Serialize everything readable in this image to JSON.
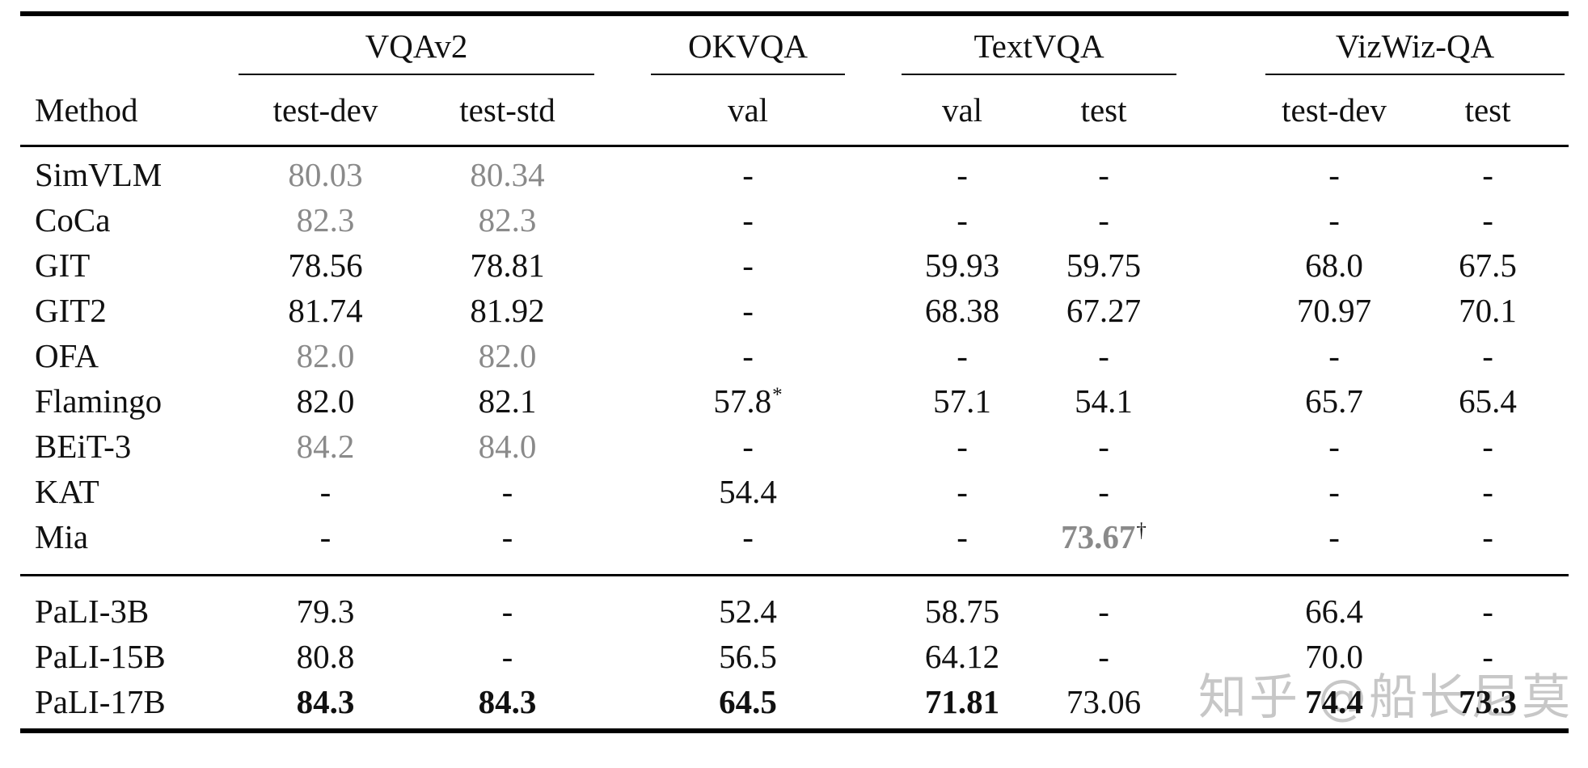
{
  "table": {
    "method_header": "Method",
    "col_groups": [
      {
        "label": "VQAv2",
        "subcols": [
          "test-dev",
          "test-std"
        ]
      },
      {
        "label": "OKVQA",
        "subcols": [
          "val"
        ]
      },
      {
        "label": "TextVQA",
        "subcols": [
          "val",
          "test"
        ]
      },
      {
        "label": "VizWiz-QA",
        "subcols": [
          "test-dev",
          "test"
        ]
      }
    ],
    "rows": [
      {
        "method": "SimVLM",
        "group": "baselines",
        "cells": [
          {
            "t": "80.03",
            "gray": true
          },
          {
            "t": "80.34",
            "gray": true
          },
          {
            "t": "-"
          },
          {
            "t": "-"
          },
          {
            "t": "-"
          },
          {
            "t": "-"
          },
          {
            "t": "-"
          }
        ]
      },
      {
        "method": "CoCa",
        "group": "baselines",
        "cells": [
          {
            "t": "82.3",
            "gray": true
          },
          {
            "t": "82.3",
            "gray": true
          },
          {
            "t": "-"
          },
          {
            "t": "-"
          },
          {
            "t": "-"
          },
          {
            "t": "-"
          },
          {
            "t": "-"
          }
        ]
      },
      {
        "method": "GIT",
        "group": "baselines",
        "cells": [
          {
            "t": "78.56"
          },
          {
            "t": "78.81"
          },
          {
            "t": "-"
          },
          {
            "t": "59.93"
          },
          {
            "t": "59.75"
          },
          {
            "t": "68.0"
          },
          {
            "t": "67.5"
          }
        ]
      },
      {
        "method": "GIT2",
        "group": "baselines",
        "cells": [
          {
            "t": "81.74"
          },
          {
            "t": "81.92"
          },
          {
            "t": "-"
          },
          {
            "t": "68.38"
          },
          {
            "t": "67.27"
          },
          {
            "t": "70.97"
          },
          {
            "t": "70.1"
          }
        ]
      },
      {
        "method": "OFA",
        "group": "baselines",
        "cells": [
          {
            "t": "82.0",
            "gray": true
          },
          {
            "t": "82.0",
            "gray": true
          },
          {
            "t": "-"
          },
          {
            "t": "-"
          },
          {
            "t": "-"
          },
          {
            "t": "-"
          },
          {
            "t": "-"
          }
        ]
      },
      {
        "method": "Flamingo",
        "group": "baselines",
        "cells": [
          {
            "t": "82.0"
          },
          {
            "t": "82.1"
          },
          {
            "t": "57.8",
            "sup": "*"
          },
          {
            "t": "57.1"
          },
          {
            "t": "54.1"
          },
          {
            "t": "65.7"
          },
          {
            "t": "65.4"
          }
        ]
      },
      {
        "method": "BEiT-3",
        "group": "baselines",
        "cells": [
          {
            "t": "84.2",
            "gray": true
          },
          {
            "t": "84.0",
            "gray": true
          },
          {
            "t": "-"
          },
          {
            "t": "-"
          },
          {
            "t": "-"
          },
          {
            "t": "-"
          },
          {
            "t": "-"
          }
        ]
      },
      {
        "method": "KAT",
        "group": "baselines",
        "cells": [
          {
            "t": "-"
          },
          {
            "t": "-"
          },
          {
            "t": "54.4"
          },
          {
            "t": "-"
          },
          {
            "t": "-"
          },
          {
            "t": "-"
          },
          {
            "t": "-"
          }
        ]
      },
      {
        "method": "Mia",
        "group": "baselines",
        "cells": [
          {
            "t": "-"
          },
          {
            "t": "-"
          },
          {
            "t": "-"
          },
          {
            "t": "-"
          },
          {
            "t": "73.67",
            "gray": true,
            "bold": true,
            "sup": "†"
          },
          {
            "t": "-"
          },
          {
            "t": "-"
          }
        ]
      },
      {
        "method": "PaLI-3B",
        "group": "pali",
        "cells": [
          {
            "t": "79.3"
          },
          {
            "t": "-"
          },
          {
            "t": "52.4"
          },
          {
            "t": "58.75"
          },
          {
            "t": "-"
          },
          {
            "t": "66.4"
          },
          {
            "t": "-"
          }
        ]
      },
      {
        "method": "PaLI-15B",
        "group": "pali",
        "cells": [
          {
            "t": "80.8"
          },
          {
            "t": "-"
          },
          {
            "t": "56.5"
          },
          {
            "t": "64.12"
          },
          {
            "t": "-"
          },
          {
            "t": "70.0"
          },
          {
            "t": "-"
          }
        ]
      },
      {
        "method": "PaLI-17B",
        "group": "pali",
        "cells": [
          {
            "t": "84.3",
            "bold": true
          },
          {
            "t": "84.3",
            "bold": true
          },
          {
            "t": "64.5",
            "bold": true
          },
          {
            "t": "71.81",
            "bold": true
          },
          {
            "t": "73.06"
          },
          {
            "t": "74.4",
            "bold": true
          },
          {
            "t": "73.3",
            "bold": true
          }
        ]
      }
    ]
  },
  "watermark": {
    "text": "知乎 @船长尼莫",
    "color": "#c3c3c3"
  },
  "colors": {
    "text": "#111111",
    "gray_value": "#8a8a8a",
    "rule": "#000000",
    "background": "#ffffff"
  }
}
